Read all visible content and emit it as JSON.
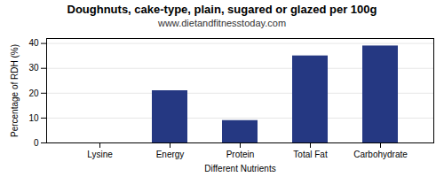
{
  "chart_data": {
    "type": "bar",
    "title": "Doughnuts, cake-type, plain, sugared or glazed per 100g",
    "subtitle": "www.dietandfitnesstoday.com",
    "xlabel": "Different Nutrients",
    "ylabel": "Percentage of RDH (%)",
    "categories": [
      "Lysine",
      "Energy",
      "Protein",
      "Total Fat",
      "Carbohydrate"
    ],
    "values": [
      0,
      21,
      9,
      35,
      39
    ],
    "color": "#253882",
    "ylim": [
      0,
      42
    ],
    "yticks": [
      0,
      10,
      20,
      30,
      40
    ],
    "grid": true
  }
}
